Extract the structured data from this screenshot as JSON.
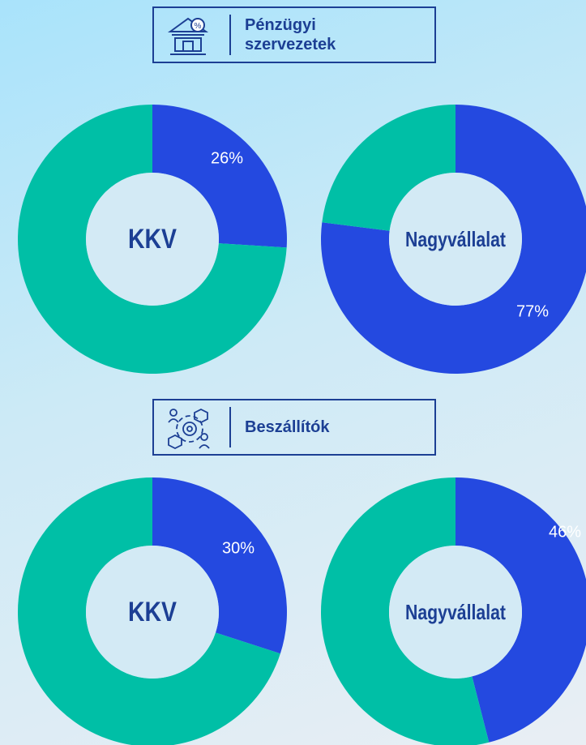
{
  "sections": [
    {
      "title": "Pénzügyi szervezetek"
    },
    {
      "title": "Beszállítók"
    }
  ],
  "chart_data": [
    {
      "type": "pie",
      "donut": true,
      "center_label": "KKV",
      "values": [
        26,
        74
      ],
      "value_labels": [
        "26%",
        null
      ],
      "colors": [
        "#2449e0",
        "#00bfa6"
      ]
    },
    {
      "type": "pie",
      "donut": true,
      "center_label": "Nagyvállalat",
      "values": [
        77,
        23
      ],
      "value_labels": [
        "77%",
        null
      ],
      "colors": [
        "#2449e0",
        "#00bfa6"
      ]
    },
    {
      "type": "pie",
      "donut": true,
      "center_label": "KKV",
      "values": [
        30,
        70
      ],
      "value_labels": [
        "30%",
        null
      ],
      "colors": [
        "#2449e0",
        "#00bfa6"
      ]
    },
    {
      "type": "pie",
      "donut": true,
      "center_label": "Nagyvállalat",
      "values": [
        46,
        54
      ],
      "value_labels": [
        "46%",
        null
      ],
      "colors": [
        "#2449e0",
        "#00bfa6"
      ]
    }
  ]
}
